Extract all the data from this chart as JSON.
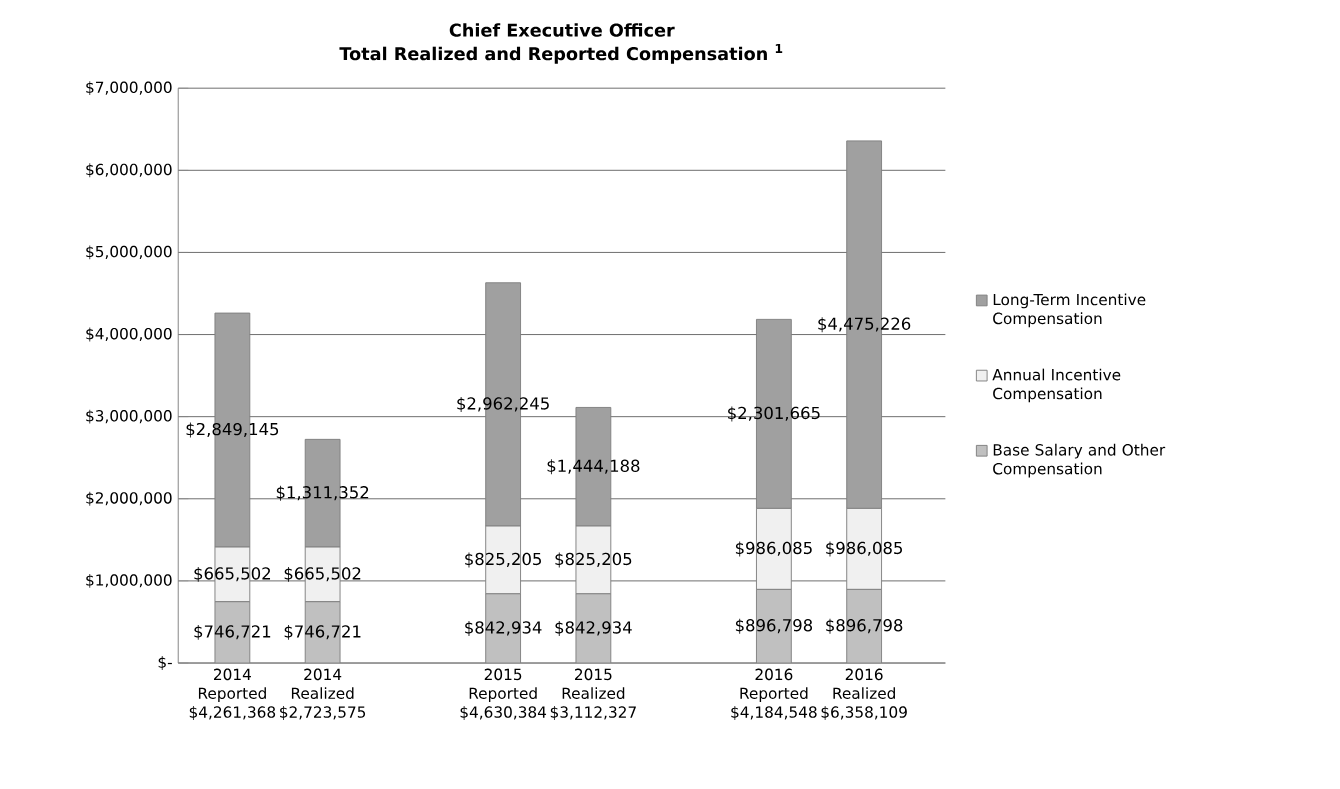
{
  "chart_data": {
    "type": "bar",
    "stacked": true,
    "title": "Chief Executive Officer",
    "subtitle": "Total Realized and Reported Compensation $^{1}$",
    "categories": [
      "2014 Reported $4,261,368",
      "2014 Realized $2,723,575",
      null,
      "2015 Reported $4,630,384",
      "2015 Realized $3,112,327",
      null,
      "2016 Reported $4,184,548",
      "2016 Realized $6,358,109"
    ],
    "series": [
      {
        "name": "Base Salary and Other Compensation",
        "color": "#c0c0c0",
        "values": [
          746721,
          746721,
          null,
          842934,
          842934,
          null,
          896798,
          896798
        ],
        "value_labels": [
          "$746,721",
          "$746,721",
          null,
          "$842,934",
          "$842,934",
          null,
          "$896,798",
          "$896,798"
        ]
      },
      {
        "name": "Annual Incentive Compensation",
        "color": "#f0f0f0",
        "values": [
          665502,
          665502,
          null,
          825205,
          825205,
          null,
          986085,
          986085
        ],
        "value_labels": [
          "$665,502",
          "$665,502",
          null,
          "$825,205",
          "$825,205",
          null,
          "$986,085",
          "$986,085"
        ]
      },
      {
        "name": "Long-Term Incentive Compensation",
        "color": "#a0a0a0",
        "values": [
          2849145,
          1311352,
          null,
          2962245,
          1444188,
          null,
          2301665,
          4475226
        ],
        "value_labels": [
          "$2,849,145",
          "$1,311,352",
          null,
          "$2,962,245",
          "$1,444,188",
          null,
          "$2,301,665",
          "$4,475,226"
        ]
      }
    ],
    "ylim": [
      0,
      7000000
    ],
    "yticks": [
      {
        "value": 0,
        "label": "$-"
      },
      {
        "value": 1000000,
        "label": "$1,000,000"
      },
      {
        "value": 2000000,
        "label": "$2,000,000"
      },
      {
        "value": 3000000,
        "label": "$3,000,000"
      },
      {
        "value": 4000000,
        "label": "$4,000,000"
      },
      {
        "value": 5000000,
        "label": "$5,000,000"
      },
      {
        "value": 6000000,
        "label": "$6,000,000"
      },
      {
        "value": 7000000,
        "label": "$7,000,000"
      }
    ],
    "grid": "y",
    "legend": "right"
  }
}
